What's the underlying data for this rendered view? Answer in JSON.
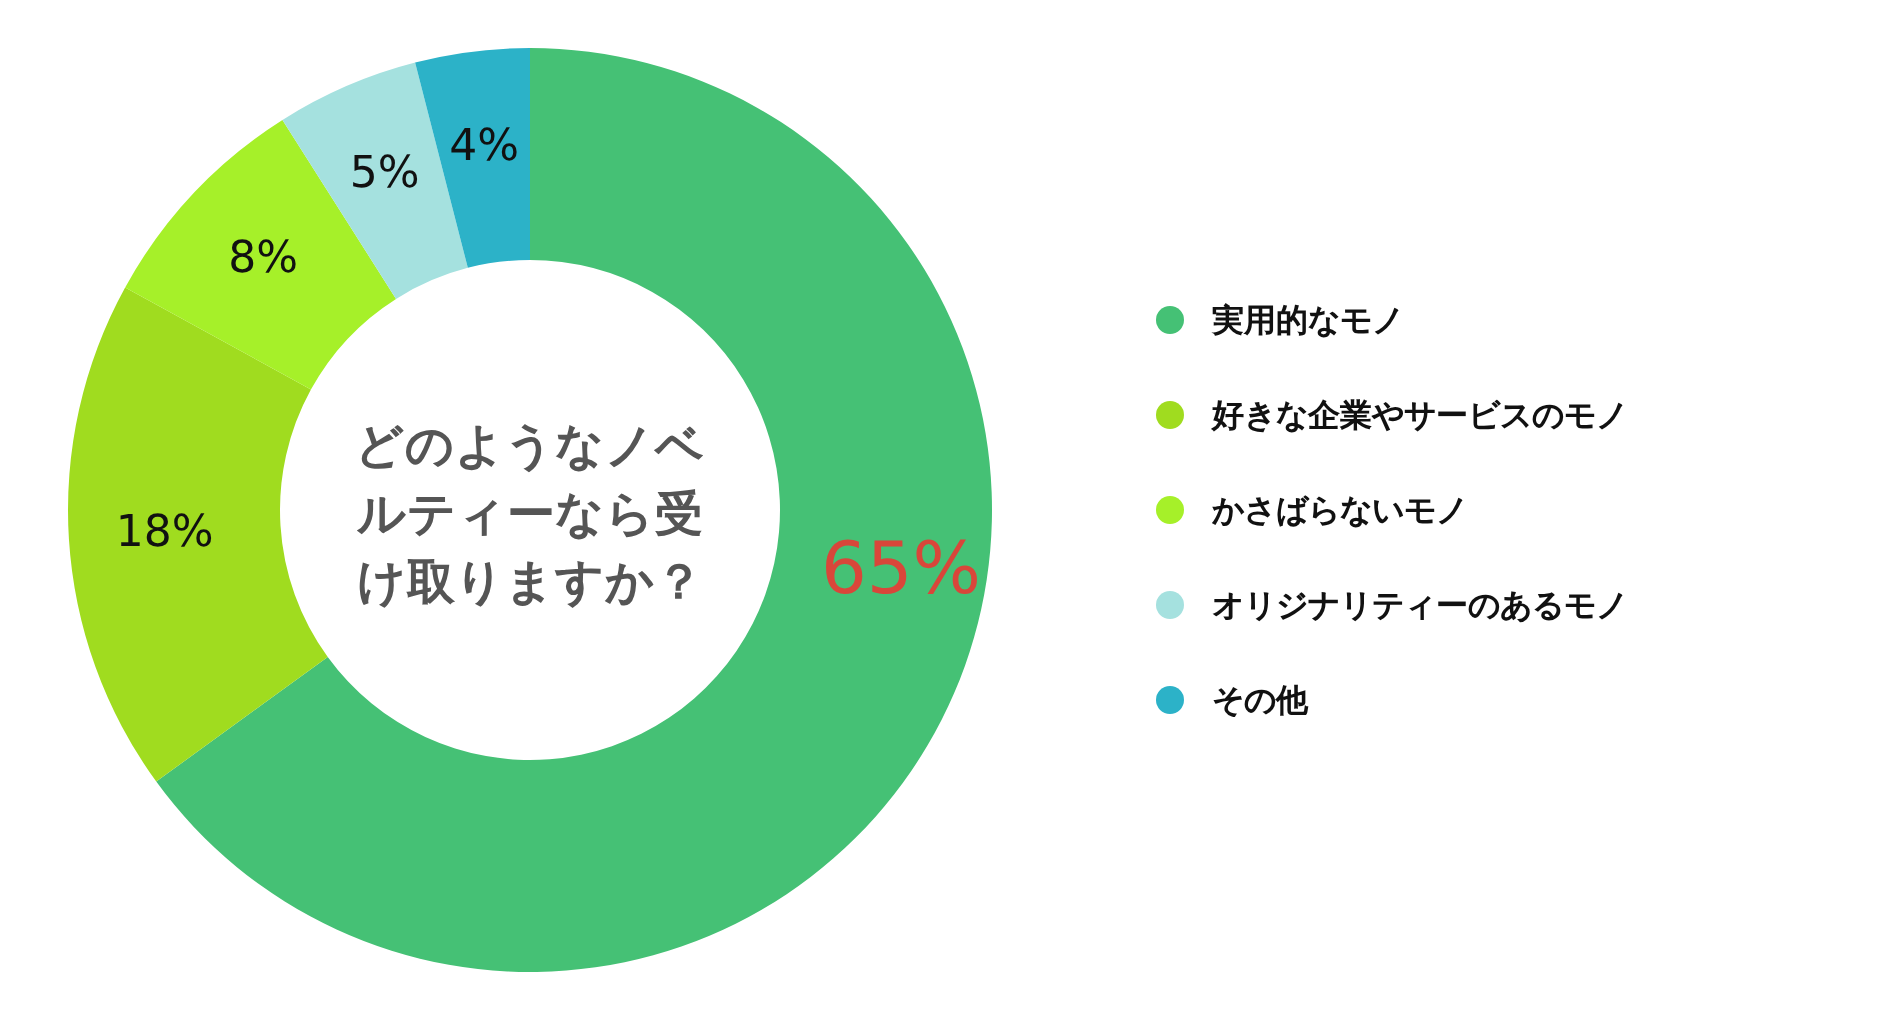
{
  "chart_data": {
    "type": "donut",
    "title": "どのようなノベルティーなら受け取りますか？",
    "categories": [
      "実用的なモノ",
      "好きな企業やサービスのモノ",
      "かさばらないモノ",
      "オリジナリティーのあるモノ",
      "その他"
    ],
    "values": [
      65,
      18,
      8,
      5,
      4
    ],
    "colors": [
      "#45c175",
      "#a0dc1f",
      "#a6f029",
      "#a5e1df",
      "#2cb2c8"
    ],
    "value_labels": [
      "65%",
      "18%",
      "8%",
      "5%",
      "4%"
    ],
    "legend": "right"
  }
}
